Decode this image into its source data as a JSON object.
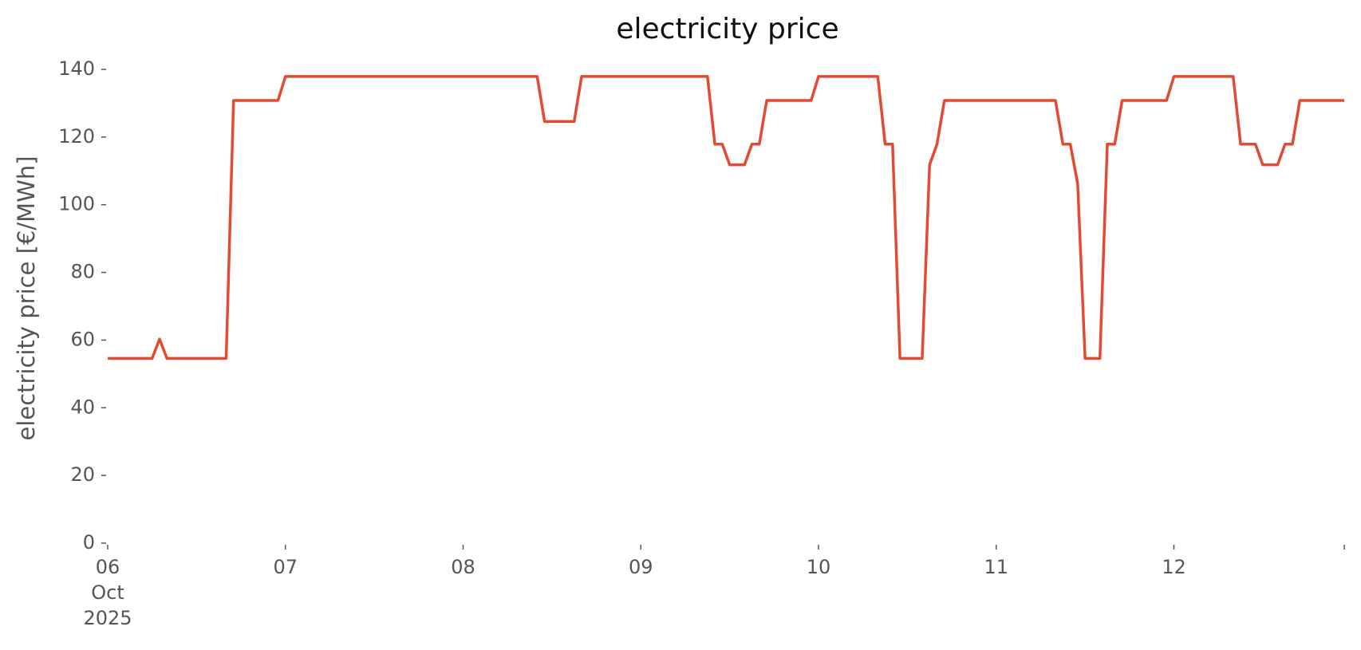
{
  "chart_data": {
    "type": "line",
    "title": "electricity price",
    "ylabel": "electricity price [€/MWh]",
    "color": "#e24a33",
    "x": [
      "2025-10-06T00:00",
      "2025-10-06T01:00",
      "2025-10-06T02:00",
      "2025-10-06T03:00",
      "2025-10-06T04:00",
      "2025-10-06T05:00",
      "2025-10-06T06:00",
      "2025-10-06T07:00",
      "2025-10-06T08:00",
      "2025-10-06T09:00",
      "2025-10-06T10:00",
      "2025-10-06T11:00",
      "2025-10-06T12:00",
      "2025-10-06T13:00",
      "2025-10-06T14:00",
      "2025-10-06T15:00",
      "2025-10-06T16:00",
      "2025-10-06T17:00",
      "2025-10-06T18:00",
      "2025-10-06T19:00",
      "2025-10-06T20:00",
      "2025-10-06T21:00",
      "2025-10-06T22:00",
      "2025-10-06T23:00",
      "2025-10-07T00:00",
      "2025-10-07T01:00",
      "2025-10-07T02:00",
      "2025-10-07T03:00",
      "2025-10-07T04:00",
      "2025-10-07T05:00",
      "2025-10-07T06:00",
      "2025-10-07T07:00",
      "2025-10-07T08:00",
      "2025-10-07T09:00",
      "2025-10-07T10:00",
      "2025-10-07T11:00",
      "2025-10-07T12:00",
      "2025-10-07T13:00",
      "2025-10-07T14:00",
      "2025-10-07T15:00",
      "2025-10-07T16:00",
      "2025-10-07T17:00",
      "2025-10-07T18:00",
      "2025-10-07T19:00",
      "2025-10-07T20:00",
      "2025-10-07T21:00",
      "2025-10-07T22:00",
      "2025-10-07T23:00",
      "2025-10-08T00:00",
      "2025-10-08T01:00",
      "2025-10-08T02:00",
      "2025-10-08T03:00",
      "2025-10-08T04:00",
      "2025-10-08T05:00",
      "2025-10-08T06:00",
      "2025-10-08T07:00",
      "2025-10-08T08:00",
      "2025-10-08T09:00",
      "2025-10-08T10:00",
      "2025-10-08T11:00",
      "2025-10-08T12:00",
      "2025-10-08T13:00",
      "2025-10-08T14:00",
      "2025-10-08T15:00",
      "2025-10-08T16:00",
      "2025-10-08T17:00",
      "2025-10-08T18:00",
      "2025-10-08T19:00",
      "2025-10-08T20:00",
      "2025-10-08T21:00",
      "2025-10-08T22:00",
      "2025-10-08T23:00",
      "2025-10-09T00:00",
      "2025-10-09T01:00",
      "2025-10-09T02:00",
      "2025-10-09T03:00",
      "2025-10-09T04:00",
      "2025-10-09T05:00",
      "2025-10-09T06:00",
      "2025-10-09T07:00",
      "2025-10-09T08:00",
      "2025-10-09T09:00",
      "2025-10-09T10:00",
      "2025-10-09T11:00",
      "2025-10-09T12:00",
      "2025-10-09T13:00",
      "2025-10-09T14:00",
      "2025-10-09T15:00",
      "2025-10-09T16:00",
      "2025-10-09T17:00",
      "2025-10-09T18:00",
      "2025-10-09T19:00",
      "2025-10-09T20:00",
      "2025-10-09T21:00",
      "2025-10-09T22:00",
      "2025-10-09T23:00",
      "2025-10-10T00:00",
      "2025-10-10T01:00",
      "2025-10-10T02:00",
      "2025-10-10T03:00",
      "2025-10-10T04:00",
      "2025-10-10T05:00",
      "2025-10-10T06:00",
      "2025-10-10T07:00",
      "2025-10-10T08:00",
      "2025-10-10T09:00",
      "2025-10-10T10:00",
      "2025-10-10T11:00",
      "2025-10-10T12:00",
      "2025-10-10T13:00",
      "2025-10-10T14:00",
      "2025-10-10T15:00",
      "2025-10-10T16:00",
      "2025-10-10T17:00",
      "2025-10-10T18:00",
      "2025-10-10T19:00",
      "2025-10-10T20:00",
      "2025-10-10T21:00",
      "2025-10-10T22:00",
      "2025-10-10T23:00",
      "2025-10-11T00:00",
      "2025-10-11T01:00",
      "2025-10-11T02:00",
      "2025-10-11T03:00",
      "2025-10-11T04:00",
      "2025-10-11T05:00",
      "2025-10-11T06:00",
      "2025-10-11T07:00",
      "2025-10-11T08:00",
      "2025-10-11T09:00",
      "2025-10-11T10:00",
      "2025-10-11T11:00",
      "2025-10-11T12:00",
      "2025-10-11T13:00",
      "2025-10-11T14:00",
      "2025-10-11T15:00",
      "2025-10-11T16:00",
      "2025-10-11T17:00",
      "2025-10-11T18:00",
      "2025-10-11T19:00",
      "2025-10-11T20:00",
      "2025-10-11T21:00",
      "2025-10-11T22:00",
      "2025-10-11T23:00",
      "2025-10-12T00:00",
      "2025-10-12T01:00",
      "2025-10-12T02:00",
      "2025-10-12T03:00",
      "2025-10-12T04:00",
      "2025-10-12T05:00",
      "2025-10-12T06:00",
      "2025-10-12T07:00",
      "2025-10-12T08:00",
      "2025-10-12T09:00",
      "2025-10-12T10:00",
      "2025-10-12T11:00",
      "2025-10-12T12:00",
      "2025-10-12T13:00",
      "2025-10-12T14:00",
      "2025-10-12T15:00",
      "2025-10-12T16:00",
      "2025-10-12T17:00",
      "2025-10-12T18:00",
      "2025-10-12T19:00",
      "2025-10-12T20:00",
      "2025-10-12T21:00",
      "2025-10-12T22:00",
      "2025-10-12T23:00"
    ],
    "values": [
      54.6,
      54.6,
      54.6,
      54.6,
      54.6,
      54.6,
      54.6,
      60.3,
      54.6,
      54.6,
      54.6,
      54.6,
      54.6,
      54.6,
      54.6,
      54.6,
      54.6,
      130.8,
      130.8,
      130.8,
      130.8,
      130.8,
      130.8,
      130.8,
      137.9,
      137.9,
      137.9,
      137.9,
      137.9,
      137.9,
      137.9,
      137.9,
      137.9,
      137.9,
      137.9,
      137.9,
      137.9,
      137.9,
      137.9,
      137.9,
      137.9,
      137.9,
      137.9,
      137.9,
      137.9,
      137.9,
      137.9,
      137.9,
      137.9,
      137.9,
      137.9,
      137.9,
      137.9,
      137.9,
      137.9,
      137.9,
      137.9,
      137.9,
      137.9,
      124.6,
      124.6,
      124.6,
      124.6,
      124.6,
      137.9,
      137.9,
      137.9,
      137.9,
      137.9,
      137.9,
      137.9,
      137.9,
      137.9,
      137.9,
      137.9,
      137.9,
      137.9,
      137.9,
      137.9,
      137.9,
      137.9,
      137.9,
      117.9,
      117.9,
      111.8,
      111.8,
      111.8,
      117.9,
      117.9,
      130.8,
      130.8,
      130.8,
      130.8,
      130.8,
      130.8,
      130.8,
      137.9,
      137.9,
      137.9,
      137.9,
      137.9,
      137.9,
      137.9,
      137.9,
      137.9,
      117.9,
      117.9,
      54.6,
      54.6,
      54.6,
      54.6,
      111.8,
      117.9,
      130.8,
      130.8,
      130.8,
      130.8,
      130.8,
      130.8,
      130.8,
      130.8,
      130.8,
      130.8,
      130.8,
      130.8,
      130.8,
      130.8,
      130.8,
      130.8,
      117.9,
      117.9,
      106.2,
      54.6,
      54.6,
      54.6,
      117.9,
      117.9,
      130.8,
      130.8,
      130.8,
      130.8,
      130.8,
      130.8,
      130.8,
      137.9,
      137.9,
      137.9,
      137.9,
      137.9,
      137.9,
      137.9,
      137.9,
      137.9,
      117.9,
      117.9,
      117.9,
      111.8,
      111.8,
      111.8,
      117.9,
      117.9,
      130.8,
      130.8,
      130.8,
      130.8,
      130.8,
      130.8,
      130.8
    ],
    "xlim": [
      "2025-10-06T00:00",
      "2025-10-12T23:00"
    ],
    "xticks": [
      {
        "value": "2025-10-06T00:00",
        "label": "06\nOct\n2025"
      },
      {
        "value": "2025-10-07T00:00",
        "label": "07"
      },
      {
        "value": "2025-10-08T00:00",
        "label": "08"
      },
      {
        "value": "2025-10-09T00:00",
        "label": "09"
      },
      {
        "value": "2025-10-10T00:00",
        "label": "10"
      },
      {
        "value": "2025-10-11T00:00",
        "label": "11"
      },
      {
        "value": "2025-10-12T00:00",
        "label": "12"
      },
      {
        "value": "2025-10-12T23:00",
        "label": null
      }
    ],
    "ylim": [
      0,
      145
    ],
    "yticks": [
      0,
      20,
      40,
      60,
      80,
      100,
      120,
      140
    ]
  }
}
